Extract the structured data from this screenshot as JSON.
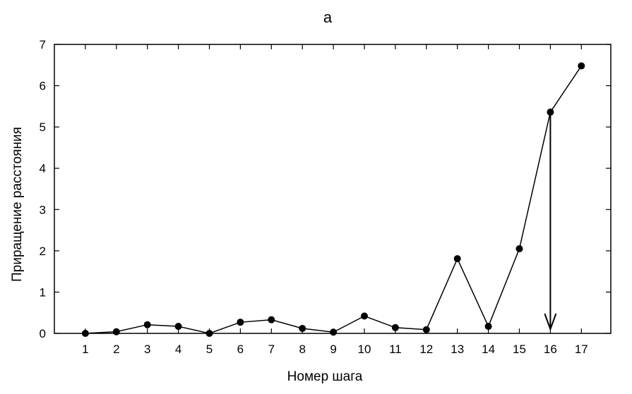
{
  "chart_data": {
    "type": "line",
    "title": "а",
    "xlabel": "Номер шага",
    "ylabel": "Приращение расстояния",
    "x": [
      1,
      2,
      3,
      4,
      5,
      6,
      7,
      8,
      9,
      10,
      11,
      12,
      13,
      14,
      15,
      16,
      17
    ],
    "series": [
      {
        "values": [
          0.0,
          0.04,
          0.21,
          0.17,
          0.0,
          0.27,
          0.33,
          0.12,
          0.03,
          0.42,
          0.14,
          0.09,
          1.81,
          0.17,
          2.05,
          5.36,
          6.48
        ]
      }
    ],
    "xlim": [
      0.0,
      17.95
    ],
    "ylim": [
      0,
      7
    ],
    "xticks": [
      1,
      2,
      3,
      4,
      5,
      6,
      7,
      8,
      9,
      10,
      11,
      12,
      13,
      14,
      15,
      16,
      17
    ],
    "yticks": [
      0,
      1,
      2,
      3,
      4,
      5,
      6,
      7
    ],
    "grid": false,
    "annotations": [
      {
        "type": "arrow",
        "x": 16,
        "from_y": 5.36,
        "to_y": 0
      }
    ]
  }
}
